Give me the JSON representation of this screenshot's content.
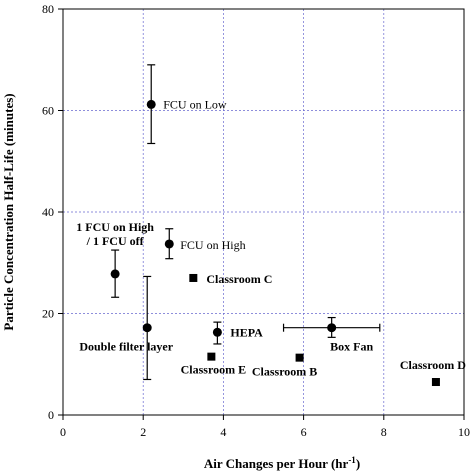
{
  "chart_data": {
    "type": "scatter",
    "xlabel": "Air Changes per Hour (hr",
    "xlabel_sup": "-1",
    "xlabel_close": ")",
    "ylabel": "Particle Concentration Half-Life (minutes)",
    "xlim": [
      0,
      10
    ],
    "ylim": [
      0,
      80
    ],
    "xticks": [
      0,
      2,
      4,
      6,
      8,
      10
    ],
    "yticks": [
      0,
      20,
      40,
      60,
      80
    ],
    "grid": true,
    "series": [
      {
        "marker": "circle",
        "points": [
          {
            "label": "FCU on Low",
            "x": 2.2,
            "y": 61.2,
            "y_err": [
              53.5,
              69.0
            ]
          },
          {
            "label": "1 FCU on High\n/ 1 FCU off",
            "x": 1.3,
            "y": 27.8,
            "y_err": [
              23.2,
              32.5
            ]
          },
          {
            "label": "FCU on High",
            "x": 2.65,
            "y": 33.7,
            "y_err": [
              30.8,
              36.7
            ]
          },
          {
            "label": "Double filter layer",
            "x": 2.1,
            "y": 17.2,
            "y_err": [
              7.0,
              27.3
            ]
          },
          {
            "label": "HEPA",
            "x": 3.85,
            "y": 16.3,
            "y_err": [
              14.0,
              18.3
            ]
          },
          {
            "label": "Box Fan",
            "x": 6.7,
            "y": 17.2,
            "y_err": [
              15.3,
              19.2
            ],
            "x_err": [
              5.5,
              7.9
            ]
          }
        ]
      },
      {
        "marker": "square",
        "points": [
          {
            "label": "Classroom C",
            "x": 3.25,
            "y": 27.0
          },
          {
            "label": "Classroom E",
            "x": 3.7,
            "y": 11.5
          },
          {
            "label": "Classroom B",
            "x": 5.9,
            "y": 11.3
          },
          {
            "label": "Classroom D",
            "x": 9.3,
            "y": 6.5
          }
        ]
      }
    ]
  }
}
